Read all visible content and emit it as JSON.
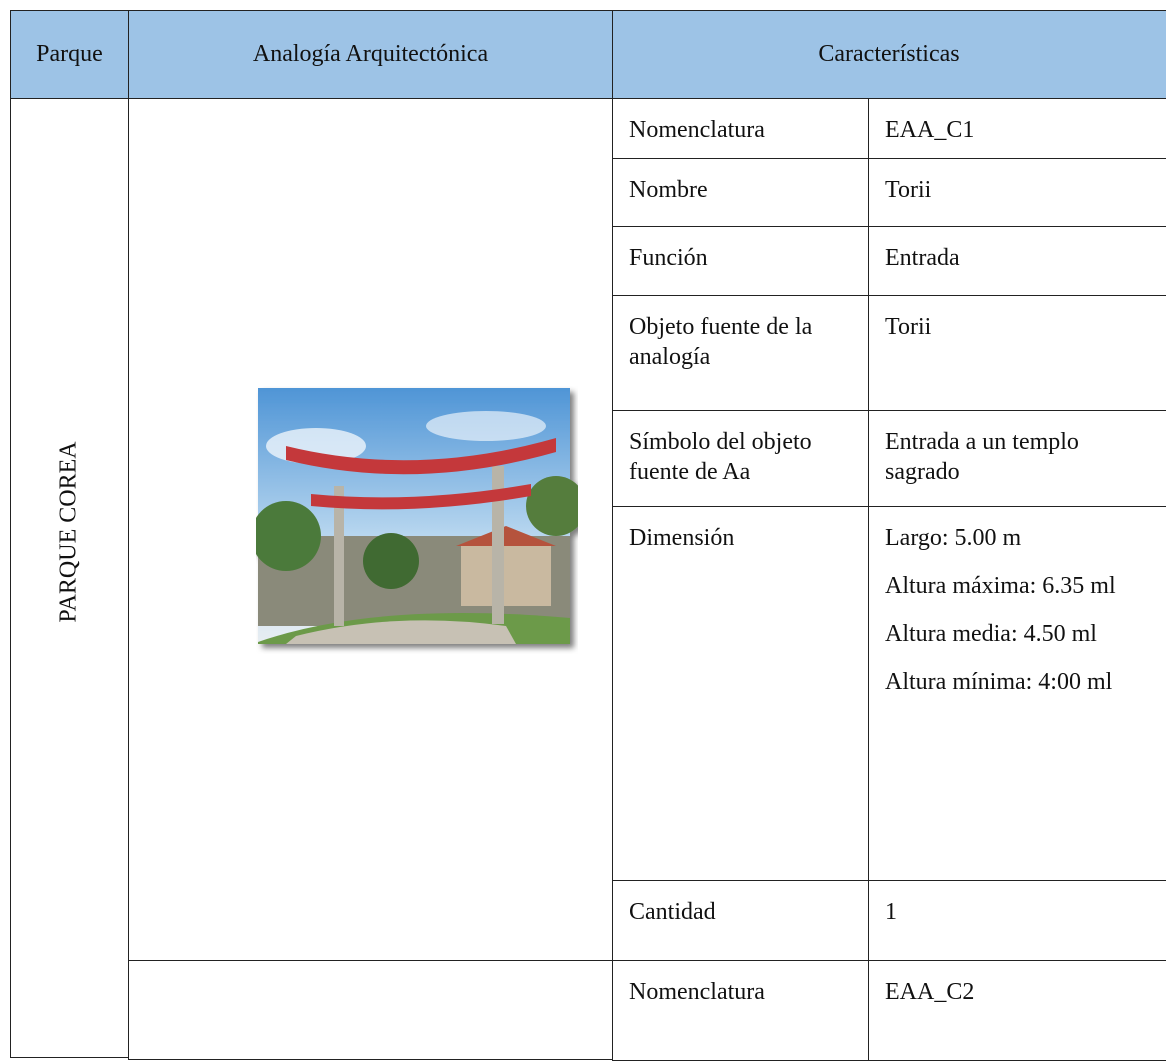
{
  "header": [
    "Parque",
    "Analogía Arquitectónica",
    "Características"
  ],
  "park": "PARQUE COREA",
  "rows": [
    {
      "label": "Nomenclatura",
      "values": [
        "EAA_C1"
      ]
    },
    {
      "label": "Nombre",
      "values": [
        "Torii"
      ]
    },
    {
      "label": "Función",
      "values": [
        "Entrada"
      ]
    },
    {
      "label": "Objeto fuente de la analogía",
      "values": [
        "Torii"
      ]
    },
    {
      "label": "Símbolo del objeto fuente de Aa",
      "values": [
        "Entrada a un templo sagrado"
      ]
    },
    {
      "label": "Dimensión",
      "values": [
        "Largo: 5.00 m",
        "Altura máxima: 6.35 ml",
        "Altura media: 4.50 ml",
        "Altura mínima: 4:00 ml"
      ]
    },
    {
      "label": "Cantidad",
      "values": [
        "1"
      ]
    },
    {
      "label": "Nomenclatura",
      "values": [
        "EAA_C2"
      ]
    }
  ]
}
